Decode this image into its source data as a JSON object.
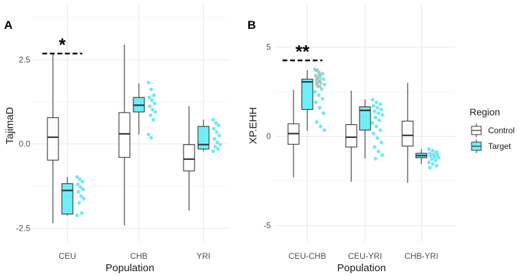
{
  "colors": {
    "control_fill": "#ffffff",
    "target_fill": "#70eef7",
    "target_points": "#68e4f0",
    "outline": "#333333",
    "highlight_points": "#c9a98a"
  },
  "legend": {
    "title": "Region",
    "items": [
      {
        "label": "Control",
        "key": "control"
      },
      {
        "label": "Target",
        "key": "target"
      }
    ]
  },
  "chart_data": [
    {
      "panel": "A",
      "type": "boxplot",
      "xlabel": "Population",
      "ylabel": "TajimaD",
      "ylim": [
        -2.9,
        4.15
      ],
      "yticks": [
        2.5,
        0.0,
        -2.5
      ],
      "ytick_labels": [
        "2.5",
        "0.0",
        "-2.5"
      ],
      "minor_yticks": [
        3.75,
        1.25,
        -1.25
      ],
      "categories": [
        "CEU",
        "CHB",
        "YRI"
      ],
      "significance": "*",
      "significance_category": "CEU",
      "groups": [
        {
          "category": "CEU",
          "control": {
            "min": -2.35,
            "q1": -0.48,
            "median": 0.2,
            "q3": 0.78,
            "max": 2.67
          },
          "target": {
            "min": -2.12,
            "q1": -2.08,
            "median": -1.38,
            "q3": -1.18,
            "max": -0.98
          },
          "target_points": [
            -0.98,
            -1.05,
            -1.12,
            -1.2,
            -1.28,
            -1.35,
            -1.42,
            -1.55,
            -1.62,
            -1.75,
            -2.05,
            -2.12
          ]
        },
        {
          "category": "CHB",
          "control": {
            "min": -2.42,
            "q1": -0.4,
            "median": 0.3,
            "q3": 0.93,
            "max": 2.95
          },
          "target": {
            "min": 0.28,
            "q1": 0.95,
            "median": 1.15,
            "q3": 1.38,
            "max": 1.8
          },
          "target_points": [
            1.82,
            1.62,
            1.45,
            1.38,
            1.3,
            1.2,
            1.12,
            1.02,
            0.95,
            0.85,
            0.72,
            0.28,
            0.18
          ]
        },
        {
          "category": "YRI",
          "control": {
            "min": -1.98,
            "q1": -0.8,
            "median": -0.45,
            "q3": -0.02,
            "max": 1.12
          },
          "target": {
            "min": -0.22,
            "q1": -0.15,
            "median": -0.02,
            "q3": 0.52,
            "max": 0.72
          },
          "target_points": [
            0.72,
            0.62,
            0.55,
            0.45,
            0.35,
            0.25,
            0.15,
            0.05,
            -0.02,
            -0.08,
            -0.15,
            -0.22
          ]
        }
      ]
    },
    {
      "panel": "B",
      "type": "boxplot",
      "xlabel": "Population",
      "ylabel": "XP.EHH",
      "ylim": [
        -5.9,
        7.4
      ],
      "yticks": [
        5,
        0,
        -5
      ],
      "ytick_labels": [
        "5",
        "0",
        "-5"
      ],
      "minor_yticks": [
        7.5,
        2.5,
        -2.5
      ],
      "categories": [
        "CEU-CHB",
        "CEU-YRI",
        "CHB-YRI"
      ],
      "significance": "**",
      "significance_category": "CEU-CHB",
      "groups": [
        {
          "category": "CEU-CHB",
          "control": {
            "min": -2.3,
            "q1": -0.45,
            "median": 0.15,
            "q3": 0.7,
            "max": 2.6
          },
          "target": {
            "min": 0.3,
            "q1": 1.5,
            "median": 3.05,
            "q3": 3.2,
            "max": 3.7
          },
          "target_points": [
            3.75,
            3.6,
            3.5,
            3.4,
            3.3,
            3.2,
            3.1,
            3.0,
            2.9,
            2.8,
            2.65,
            2.5,
            2.3,
            2.1,
            1.9,
            1.6,
            1.3,
            0.8,
            0.55,
            0.35
          ],
          "highlight_points": [
            3.7,
            3.45,
            3.25,
            3.1,
            2.95,
            2.8
          ]
        },
        {
          "category": "CEU-YRI",
          "control": {
            "min": -2.55,
            "q1": -0.6,
            "median": -0.05,
            "q3": 0.65,
            "max": 2.55
          },
          "target": {
            "min": -1.25,
            "q1": 0.35,
            "median": 1.45,
            "q3": 1.65,
            "max": 2.05
          },
          "target_points": [
            2.05,
            1.9,
            1.8,
            1.7,
            1.6,
            1.5,
            1.4,
            1.3,
            1.2,
            1.05,
            0.9,
            0.75,
            0.55,
            0.35,
            0.15,
            -0.1,
            -0.35,
            -0.6,
            -0.85,
            -1.05,
            -1.25
          ]
        },
        {
          "category": "CHB-YRI",
          "control": {
            "min": -2.6,
            "q1": -0.55,
            "median": 0.05,
            "q3": 0.85,
            "max": 3.0
          },
          "target": {
            "min": -1.55,
            "q1": -1.2,
            "median": -1.08,
            "q3": -0.95,
            "max": -0.72
          },
          "target_points": [
            -0.72,
            -0.8,
            -0.88,
            -0.95,
            -1.0,
            -1.05,
            -1.1,
            -1.15,
            -1.2,
            -1.28,
            -1.35,
            -1.45,
            -1.55,
            -1.65,
            -1.75
          ]
        }
      ]
    }
  ]
}
